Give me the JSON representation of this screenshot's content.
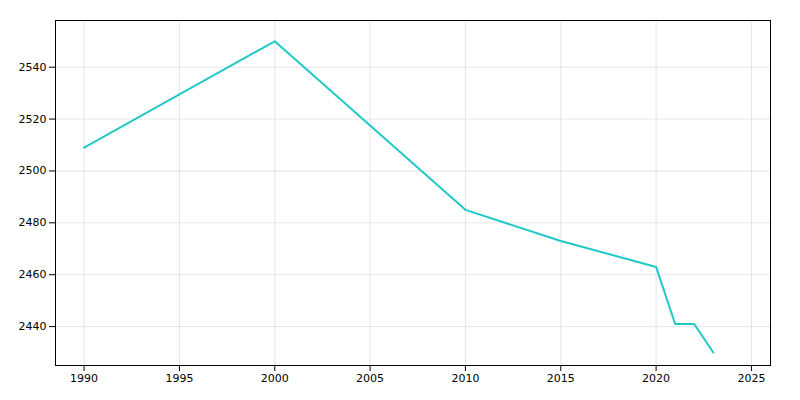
{
  "chart_data": {
    "type": "line",
    "x": [
      1990,
      2000,
      2010,
      2015,
      2020,
      2021,
      2022,
      2023
    ],
    "values": [
      2509,
      2550,
      2485,
      2473,
      2463,
      2441,
      2441,
      2430
    ],
    "color": "#20c8c8",
    "xlim": [
      1988.5,
      2026
    ],
    "ylim": [
      2425,
      2558
    ],
    "xticks": [
      1990,
      1995,
      2000,
      2005,
      2010,
      2015,
      2020,
      2025
    ],
    "yticks": [
      2440,
      2460,
      2480,
      2500,
      2520,
      2540
    ],
    "grid": true
  }
}
